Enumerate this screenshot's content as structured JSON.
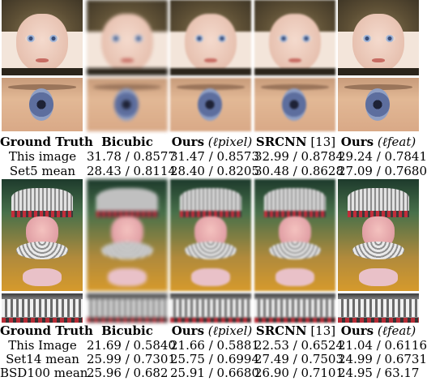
{
  "columns": [
    "Ground Truth",
    "Bicubic",
    "Ours (ℓpixel)",
    "SRCNN [13]",
    "Ours (ℓfeat)"
  ],
  "header_parts": [
    {
      "bold": "Ground Truth",
      "suffix": ""
    },
    {
      "bold": "Bicubic",
      "suffix": ""
    },
    {
      "bold": "Ours",
      "suffix": " (ℓpixel)"
    },
    {
      "bold": "SRCNN",
      "suffix": " [13]"
    },
    {
      "bold": "Ours",
      "suffix": " (ℓfeat)"
    }
  ],
  "table1": {
    "rows": [
      {
        "label": "This image",
        "values": [
          "31.78 / 0.8577",
          "31.47 / 0.8573",
          "32.99 / 0.8784",
          "29.24 / 0.7841"
        ]
      },
      {
        "label": "Set5 mean",
        "values": [
          "28.43 / 0.8114",
          "28.40 / 0.8205",
          "30.48 / 0.8628",
          "27.09 / 0.7680"
        ]
      }
    ]
  },
  "table2": {
    "rows": [
      {
        "label": "This Image",
        "values": [
          "21.69 / 0.5840",
          "21.66 / 0.5881",
          "22.53 / 0.6524",
          "21.04 / 0.6116"
        ]
      },
      {
        "label": "Set14 mean",
        "values": [
          "25.99 / 0.7301",
          "25.75 / 0.6994",
          "27.49 / 0.7503",
          "24.99 / 0.6731"
        ]
      },
      {
        "label": "BSD100 mean",
        "values": [
          "25.96 / 0.682",
          "25.91 / 0.6680",
          "26.90 / 0.7101",
          "24.95 / 63.17"
        ]
      }
    ]
  }
}
